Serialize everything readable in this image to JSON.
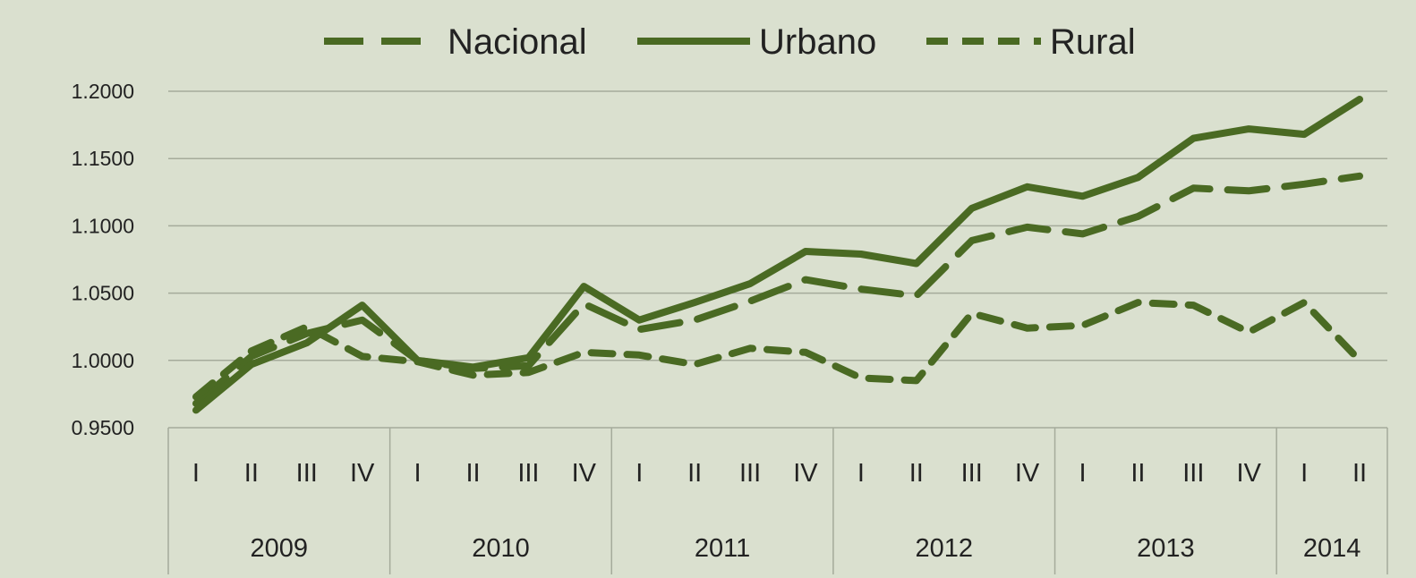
{
  "chart_data": {
    "type": "line",
    "title": "",
    "xlabel": "",
    "ylabel": "",
    "ylim": [
      0.95,
      1.2
    ],
    "yticks": [
      "0.9500",
      "1.0000",
      "1.0500",
      "1.1000",
      "1.1500",
      "1.2000"
    ],
    "grid": true,
    "legend": "top",
    "quarters": [
      "I",
      "II",
      "III",
      "IV",
      "I",
      "II",
      "III",
      "IV",
      "I",
      "II",
      "III",
      "IV",
      "I",
      "II",
      "III",
      "IV",
      "I",
      "II",
      "III",
      "IV",
      "I",
      "II"
    ],
    "years": [
      {
        "label": "2009",
        "count": 4
      },
      {
        "label": "2010",
        "count": 4
      },
      {
        "label": "2011",
        "count": 4
      },
      {
        "label": "2012",
        "count": 4
      },
      {
        "label": "2013",
        "count": 4
      },
      {
        "label": "2014",
        "count": 2
      }
    ],
    "series": [
      {
        "name": "Nacional",
        "style": "long-dash",
        "values": [
          0.968,
          1.003,
          1.02,
          1.03,
          1.0,
          0.994,
          0.996,
          1.042,
          1.023,
          1.03,
          1.044,
          1.06,
          1.053,
          1.048,
          1.089,
          1.099,
          1.094,
          1.107,
          1.128,
          1.126,
          1.131,
          1.137
        ]
      },
      {
        "name": "Urbano",
        "style": "solid",
        "values": [
          0.963,
          0.997,
          1.013,
          1.041,
          1.0,
          0.995,
          1.002,
          1.055,
          1.03,
          1.043,
          1.057,
          1.081,
          1.079,
          1.072,
          1.113,
          1.129,
          1.122,
          1.136,
          1.165,
          1.172,
          1.168,
          1.194
        ]
      },
      {
        "name": "Rural",
        "style": "short-dash",
        "values": [
          0.973,
          1.007,
          1.025,
          1.003,
          0.999,
          0.989,
          0.991,
          1.006,
          1.004,
          0.997,
          1.009,
          1.006,
          0.987,
          0.985,
          1.035,
          1.024,
          1.026,
          1.043,
          1.041,
          1.021,
          1.043,
          1.0
        ]
      }
    ],
    "colors": {
      "line": "#4a6a23",
      "grid": "#a5ab9b",
      "background": "#dae0cf"
    }
  }
}
